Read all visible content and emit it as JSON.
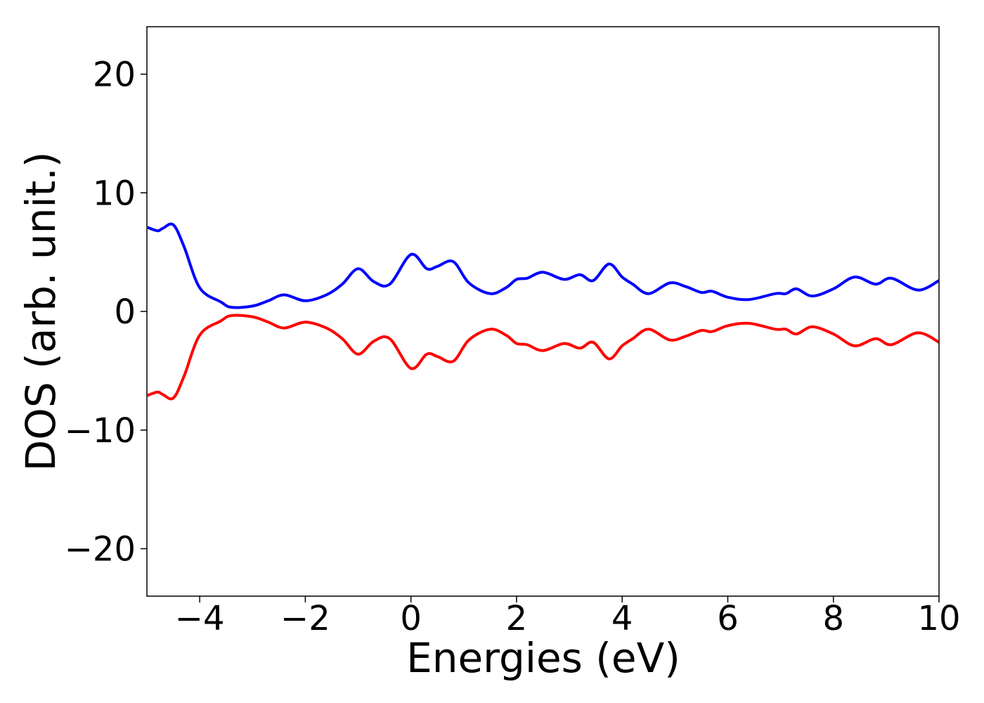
{
  "chart_data": {
    "type": "line",
    "title": "",
    "xlabel": "Energies (eV)",
    "ylabel": "DOS (arb. unit.)",
    "xlim": [
      -5,
      10
    ],
    "ylim": [
      -24,
      24
    ],
    "grid": false,
    "xticks": [
      -4,
      -2,
      0,
      2,
      4,
      6,
      8,
      10
    ],
    "yticks": [
      -20,
      -10,
      0,
      10,
      20
    ],
    "xtick_labels": [
      "−4",
      "−2",
      "0",
      "2",
      "4",
      "6",
      "8",
      "10"
    ],
    "ytick_labels": [
      "−20",
      "−10",
      "0",
      "10",
      "20"
    ],
    "colors": {
      "up": "#0000ff",
      "down": "#ff0000"
    },
    "x": [
      -5.0,
      -4.8,
      -4.7,
      -4.5,
      -4.3,
      -4.0,
      -3.6,
      -3.4,
      -3.0,
      -2.7,
      -2.4,
      -2.0,
      -1.6,
      -1.3,
      -1.0,
      -0.7,
      -0.4,
      0.0,
      0.3,
      0.5,
      0.8,
      1.1,
      1.5,
      1.8,
      2.0,
      2.2,
      2.5,
      2.9,
      3.2,
      3.45,
      3.75,
      4.0,
      4.2,
      4.5,
      4.9,
      5.2,
      5.5,
      5.7,
      6.0,
      6.4,
      6.9,
      7.1,
      7.3,
      7.6,
      8.0,
      8.4,
      8.8,
      9.1,
      9.6,
      10.0
    ],
    "series": [
      {
        "values": [
          7.1,
          6.8,
          7.0,
          7.3,
          5.5,
          2.0,
          0.8,
          0.35,
          0.45,
          0.9,
          1.4,
          0.9,
          1.4,
          2.3,
          3.6,
          2.5,
          2.3,
          4.8,
          3.6,
          3.8,
          4.2,
          2.4,
          1.5,
          2.0,
          2.7,
          2.8,
          3.3,
          2.7,
          3.1,
          2.6,
          4.0,
          2.9,
          2.3,
          1.5,
          2.4,
          2.1,
          1.6,
          1.7,
          1.2,
          1.0,
          1.5,
          1.5,
          1.9,
          1.3,
          1.9,
          2.9,
          2.3,
          2.8,
          1.8,
          2.6
        ]
      },
      {
        "values": [
          -7.1,
          -6.8,
          -7.0,
          -7.3,
          -5.5,
          -2.0,
          -0.8,
          -0.35,
          -0.45,
          -0.9,
          -1.4,
          -0.9,
          -1.4,
          -2.3,
          -3.6,
          -2.5,
          -2.3,
          -4.8,
          -3.6,
          -3.8,
          -4.2,
          -2.4,
          -1.5,
          -2.0,
          -2.7,
          -2.8,
          -3.3,
          -2.7,
          -3.1,
          -2.6,
          -4.0,
          -2.9,
          -2.3,
          -1.5,
          -2.4,
          -2.1,
          -1.6,
          -1.7,
          -1.2,
          -1.0,
          -1.5,
          -1.5,
          -1.9,
          -1.3,
          -1.9,
          -2.9,
          -2.3,
          -2.8,
          -1.8,
          -2.6
        ]
      }
    ]
  }
}
